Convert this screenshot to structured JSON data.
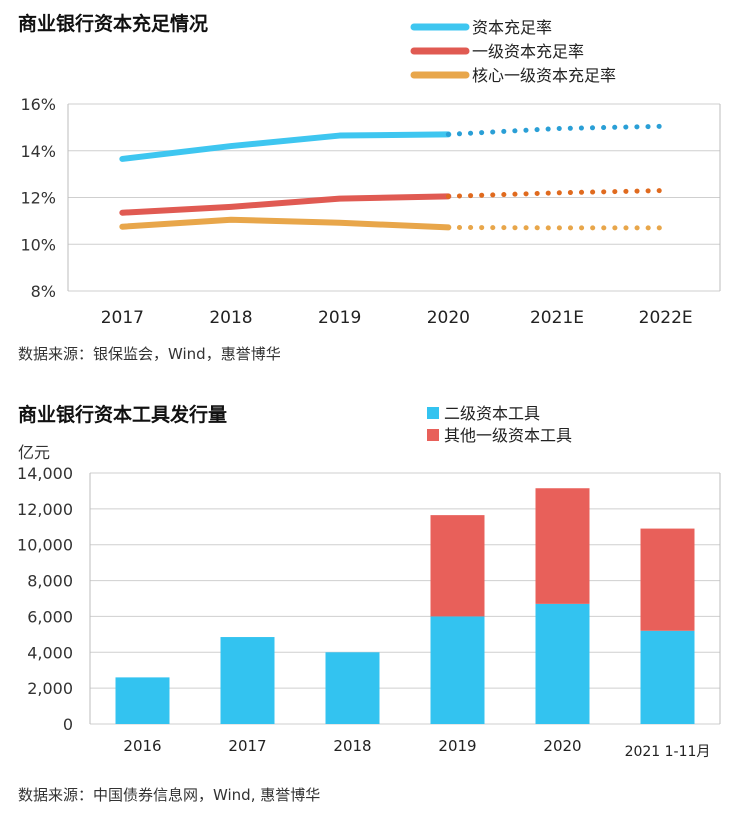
{
  "chart_data": [
    {
      "type": "line",
      "title": "商业银行资本充足情况",
      "categories": [
        "2017",
        "2018",
        "2019",
        "2020",
        "2021E",
        "2022E"
      ],
      "y_ticks": [
        "16%",
        "14%",
        "12%",
        "10%",
        "8%"
      ],
      "ylim": [
        8,
        16
      ],
      "y_unit": "%",
      "grid": true,
      "legend_position": "top-right",
      "actual_through_index": 3,
      "series": [
        {
          "name": "资本充足率",
          "color": "#3EC6F0",
          "forecast_color": "#2A9FD6",
          "values": [
            13.65,
            14.2,
            14.65,
            14.7,
            14.95,
            15.05
          ]
        },
        {
          "name": "一级资本充足率",
          "color": "#E05A52",
          "forecast_color": "#E06A1E",
          "values": [
            11.35,
            11.6,
            11.95,
            12.05,
            12.2,
            12.3
          ]
        },
        {
          "name": "核心一级资本充足率",
          "color": "#E8A64A",
          "forecast_color": "#E8A64A",
          "values": [
            10.75,
            11.05,
            10.92,
            10.72,
            10.7,
            10.7
          ]
        }
      ],
      "source": "数据来源：银保监会，Wind，惠誉博华"
    },
    {
      "type": "bar",
      "stacked": true,
      "title": "商业银行资本工具发行量",
      "ylabel": "亿元",
      "categories": [
        "2016",
        "2017",
        "2018",
        "2019",
        "2020",
        "2021 1-11月"
      ],
      "y_ticks": [
        "14,000",
        "12,000",
        "10,000",
        "8,000",
        "6,000",
        "4,000",
        "2,000",
        "0"
      ],
      "ylim": [
        0,
        14000
      ],
      "grid": true,
      "legend_position": "top-right",
      "series": [
        {
          "name": "二级资本工具",
          "color": "#33C3F0",
          "values": [
            2600,
            4850,
            4000,
            6000,
            6700,
            5200
          ]
        },
        {
          "name": "其他一级资本工具",
          "color": "#E8605A",
          "values": [
            0,
            0,
            0,
            5650,
            6450,
            5700
          ]
        }
      ],
      "source": "数据来源：中国债券信息网，Wind, 惠誉博华"
    }
  ]
}
